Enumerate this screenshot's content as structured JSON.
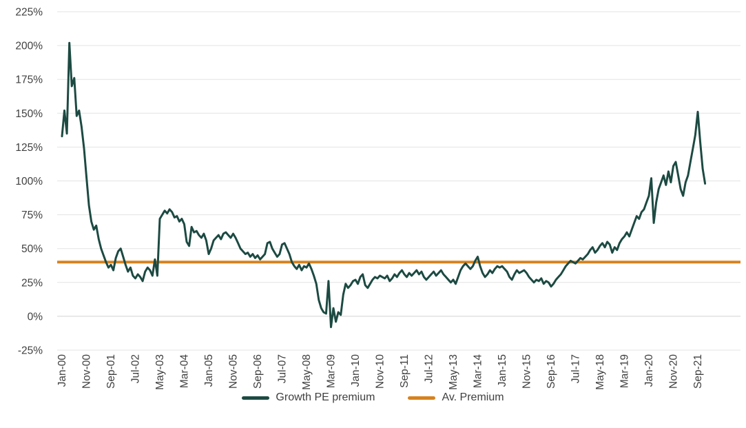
{
  "chart": {
    "legend": [
      {
        "label": "Growth PE premium",
        "color": "#1c4a42"
      },
      {
        "label": "Av. Premium",
        "color": "#d7821e"
      }
    ],
    "grid_color": "#e3e3e3",
    "zero_line_color": "#d2d2d2",
    "text_color": "#3f3f3f",
    "chart_data": {
      "type": "line",
      "title": "",
      "xlabel": "",
      "ylabel": "",
      "ylim": [
        -25,
        225
      ],
      "y_step": 25,
      "y_tick_labels": [
        "225%",
        "200%",
        "175%",
        "150%",
        "125%",
        "100%",
        "75%",
        "50%",
        "25%",
        "0%",
        "-25%"
      ],
      "x_tick_labels": [
        "Jan-00",
        "Nov-00",
        "Sep-01",
        "Jul-02",
        "May-03",
        "Mar-04",
        "Jan-05",
        "Nov-05",
        "Sep-06",
        "Jul-07",
        "May-08",
        "Mar-09",
        "Jan-10",
        "Nov-10",
        "Sep-11",
        "Jul-12",
        "May-13",
        "Mar-14",
        "Jan-15",
        "Nov-15",
        "Sep-16",
        "Jul-17",
        "May-18",
        "Mar-19",
        "Jan-20",
        "Nov-20",
        "Sep-21"
      ],
      "x_tick_every": 10,
      "grid": true,
      "legend_position": "bottom",
      "series": [
        {
          "name": "Growth PE premium",
          "color": "#1c4a42",
          "unit": "%",
          "values": [
            133,
            152,
            135,
            202,
            170,
            176,
            148,
            152,
            140,
            124,
            103,
            82,
            70,
            64,
            67,
            57,
            50,
            45,
            40,
            36,
            38,
            34,
            43,
            48,
            50,
            44,
            38,
            33,
            36,
            30,
            28,
            31,
            29,
            26,
            33,
            36,
            34,
            30,
            42,
            30,
            72,
            75,
            78,
            76,
            79,
            77,
            73,
            74,
            70,
            72,
            68,
            55,
            52,
            66,
            62,
            63,
            60,
            58,
            61,
            56,
            46,
            50,
            56,
            58,
            60,
            57,
            61,
            62,
            60,
            58,
            61,
            58,
            54,
            50,
            48,
            46,
            47,
            44,
            46,
            43,
            45,
            42,
            44,
            46,
            54,
            55,
            50,
            47,
            44,
            46,
            53,
            54,
            50,
            46,
            40,
            37,
            35,
            38,
            34,
            37,
            36,
            39,
            35,
            30,
            24,
            12,
            6,
            3,
            2,
            26,
            -8,
            6,
            -4,
            3,
            1,
            16,
            24,
            21,
            23,
            26,
            27,
            24,
            29,
            31,
            23,
            21,
            24,
            27,
            29,
            28,
            30,
            29,
            28,
            30,
            26,
            28,
            31,
            29,
            32,
            34,
            31,
            29,
            32,
            30,
            32,
            34,
            31,
            33,
            29,
            27,
            29,
            31,
            33,
            30,
            32,
            34,
            31,
            29,
            27,
            25,
            27,
            24,
            29,
            34,
            37,
            39,
            37,
            35,
            37,
            41,
            44,
            37,
            32,
            29,
            31,
            34,
            32,
            35,
            37,
            36,
            37,
            35,
            33,
            29,
            27,
            31,
            34,
            32,
            33,
            34,
            32,
            29,
            27,
            25,
            27,
            26,
            28,
            24,
            26,
            25,
            22,
            24,
            27,
            29,
            31,
            34,
            37,
            39,
            41,
            40,
            39,
            41,
            43,
            42,
            44,
            46,
            49,
            51,
            47,
            49,
            52,
            54,
            51,
            55,
            53,
            47,
            51,
            49,
            54,
            57,
            59,
            62,
            59,
            64,
            69,
            74,
            72,
            77,
            79,
            84,
            89,
            102,
            69,
            84,
            94,
            99,
            104,
            97,
            107,
            99,
            111,
            114,
            104,
            94,
            89,
            99,
            104,
            114,
            124,
            134,
            151,
            129,
            109,
            98
          ]
        }
      ],
      "reference_line": {
        "name": "Av. Premium",
        "value": 40,
        "color": "#d7821e"
      }
    }
  }
}
